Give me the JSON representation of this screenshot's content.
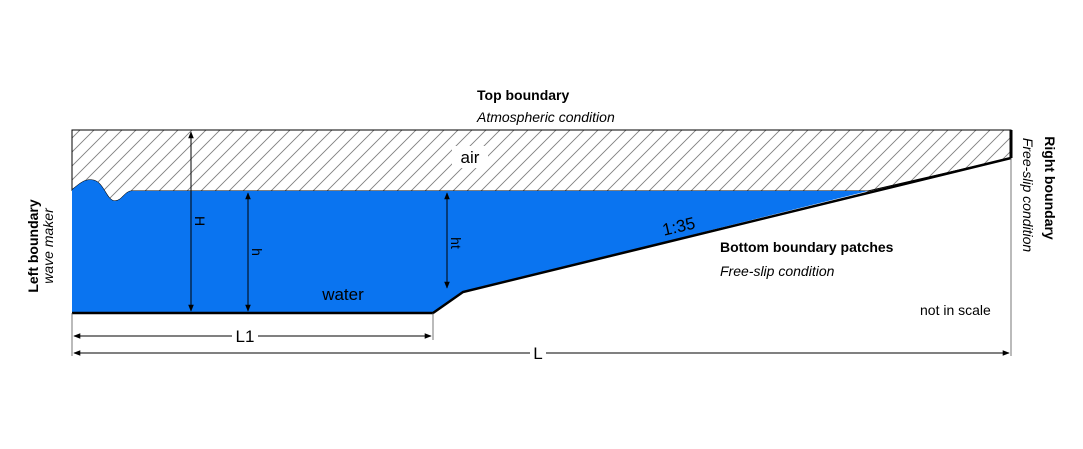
{
  "colors": {
    "water": "#0A74F0",
    "air_hatch": "#7f7f7f",
    "line": "#000000",
    "dim_line": "#555555"
  },
  "top_boundary": {
    "title": "Top boundary",
    "condition": "Atmospheric condition"
  },
  "left_boundary": {
    "title": "Left boundary",
    "condition": "wave maker"
  },
  "right_boundary": {
    "title": "Right boundary",
    "condition": "Free-slip condition"
  },
  "bottom_boundary": {
    "title": "Bottom boundary patches",
    "condition": "Free-slip condition"
  },
  "regions": {
    "air": "air",
    "water": "water"
  },
  "slope_label": "1:35",
  "dimensions": {
    "H": "H",
    "h": "h",
    "ht": "ht",
    "L1": "L1",
    "L": "L"
  },
  "note": "not in scale"
}
